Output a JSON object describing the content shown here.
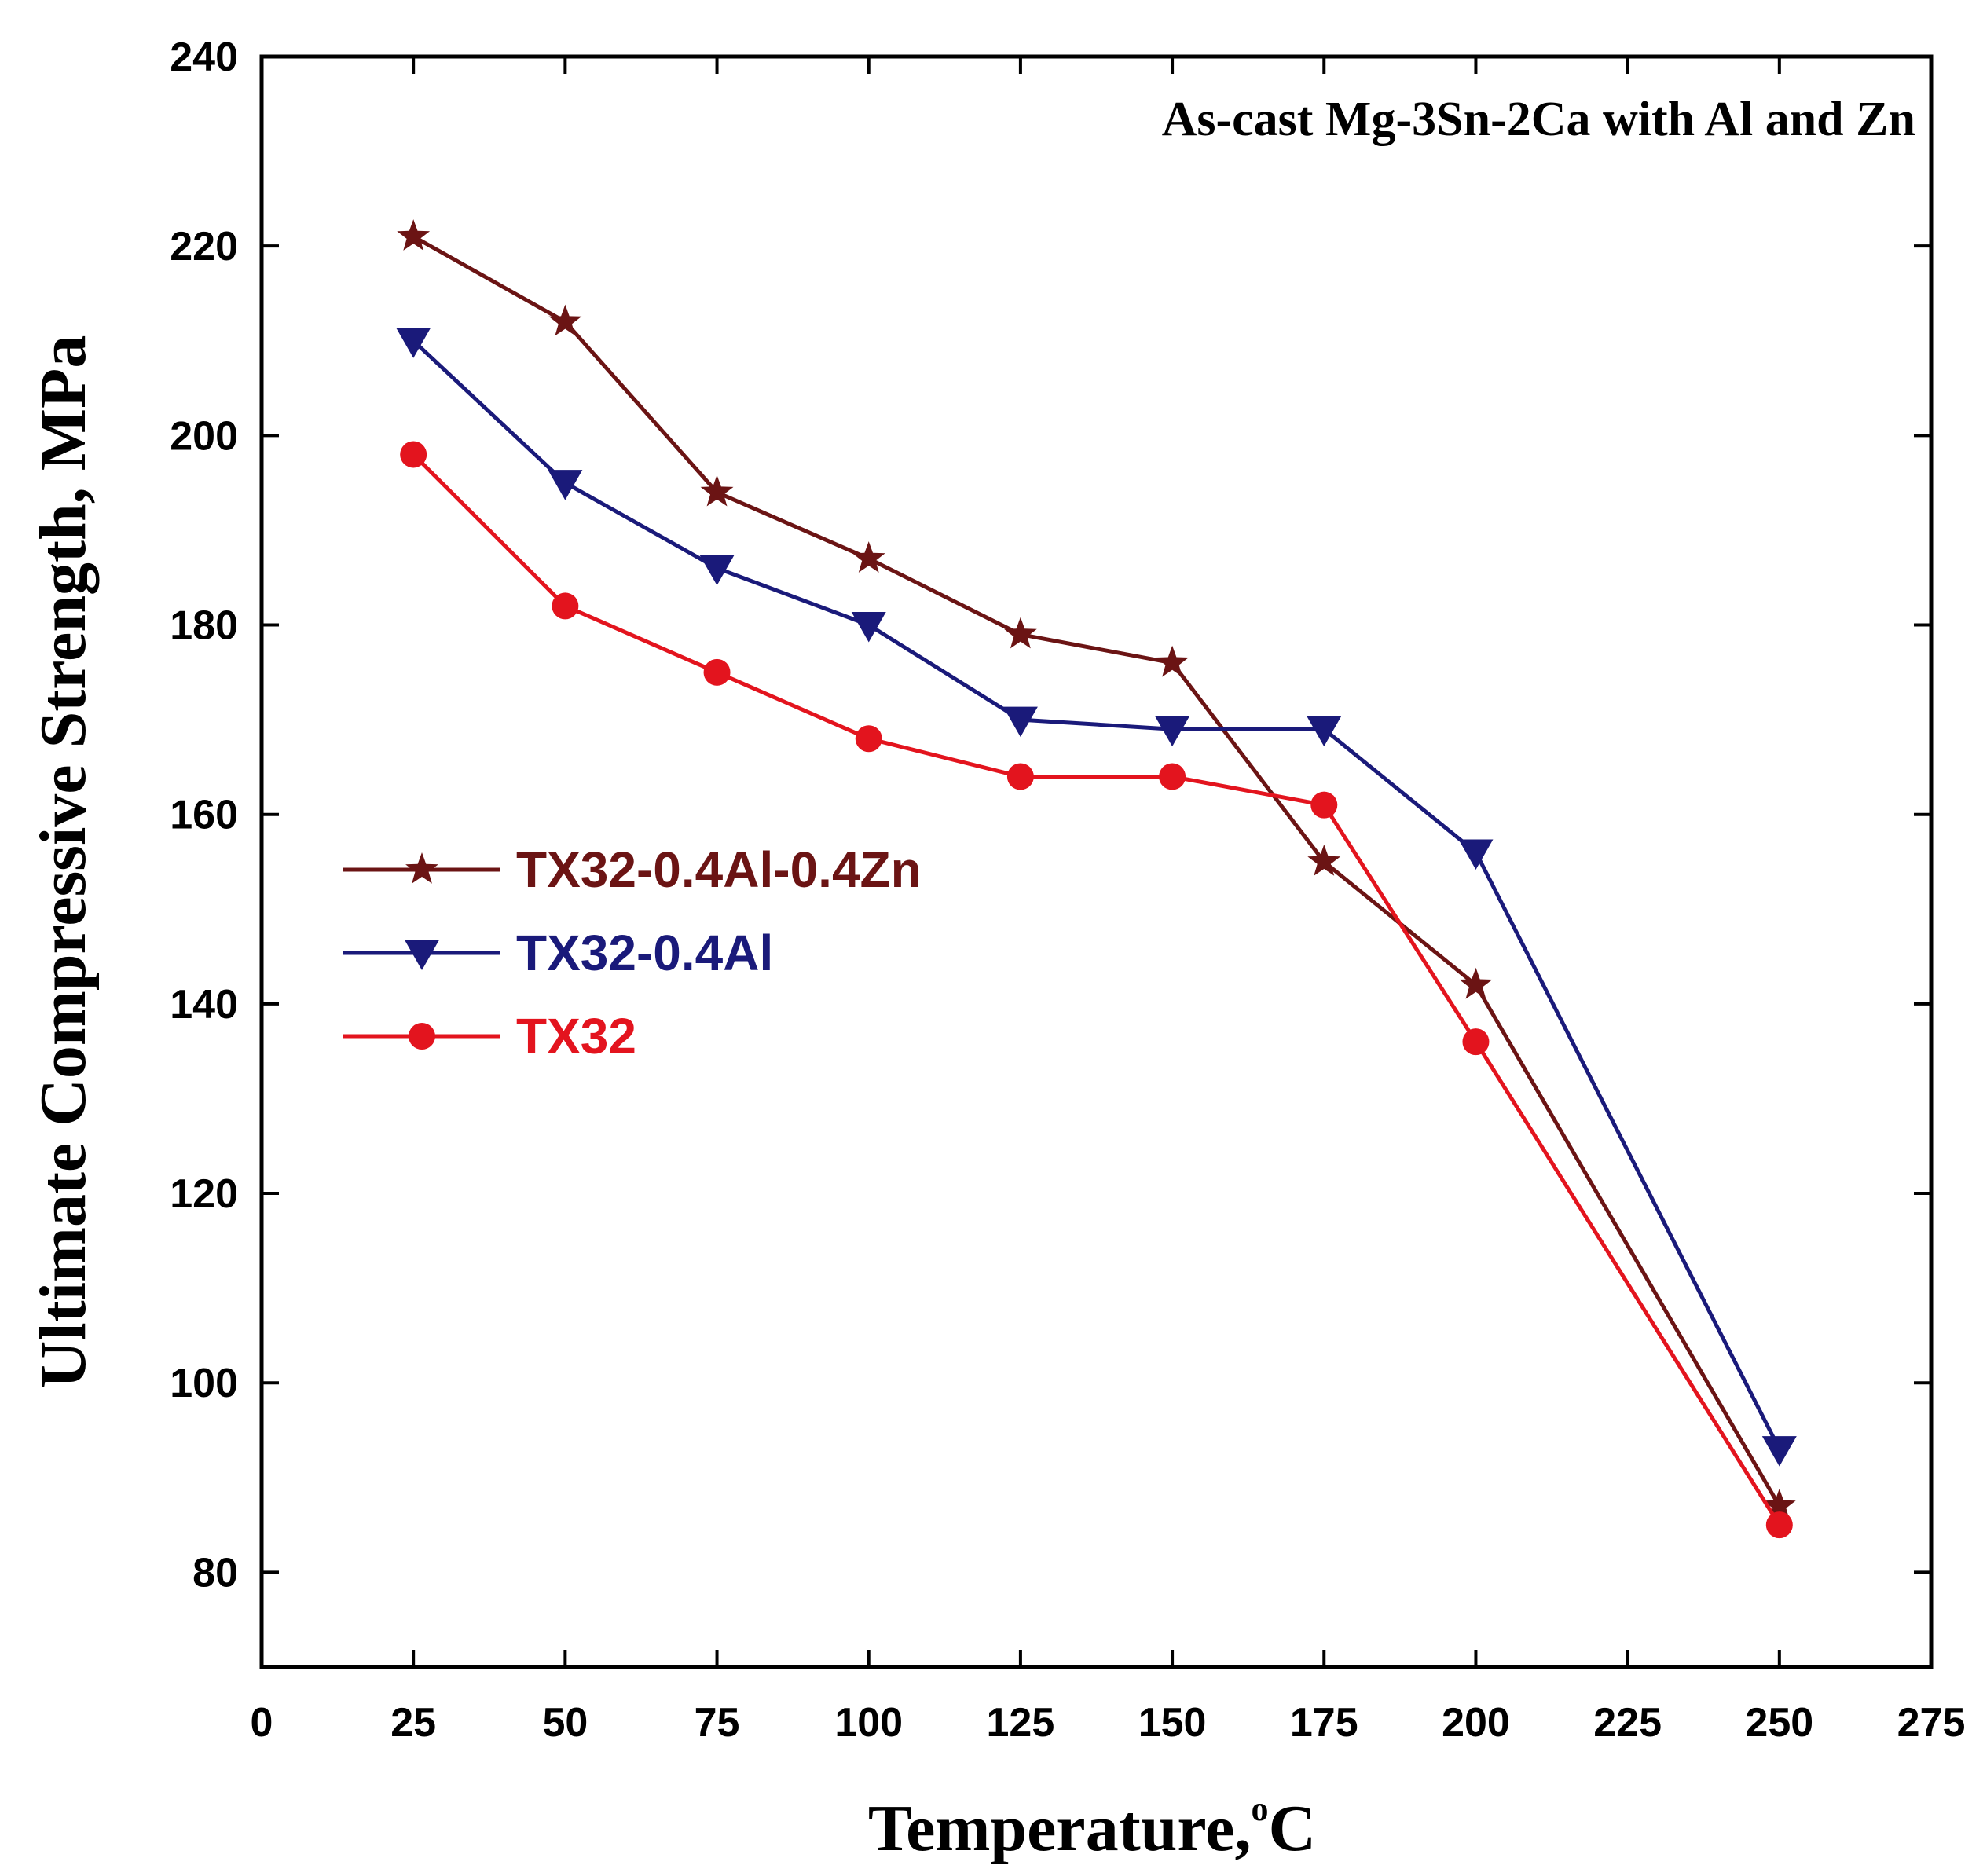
{
  "chart_data": {
    "type": "line",
    "title": "As-cast Mg-3Sn-2Ca with Al and Zn",
    "xlabel": "Temperature,",
    "xlabel_sup": "o",
    "xlabel_unit": "C",
    "ylabel": "Ultimate Compressive Strength, MPa",
    "xlim": [
      0,
      275
    ],
    "ylim": [
      70,
      240
    ],
    "xticks": [
      0,
      25,
      50,
      75,
      100,
      125,
      150,
      175,
      200,
      225,
      250,
      275
    ],
    "yticks": [
      80,
      100,
      120,
      140,
      160,
      180,
      200,
      220,
      240
    ],
    "grid": false,
    "legend_position": "middle-left",
    "series": [
      {
        "name": "TX32-0.4Al-0.4Zn",
        "marker": "star",
        "color": "#6b1414",
        "x": [
          25,
          50,
          75,
          100,
          125,
          150,
          175,
          200,
          250
        ],
        "y": [
          221,
          212,
          194,
          187,
          179,
          176,
          155,
          142,
          87
        ]
      },
      {
        "name": "TX32-0.4Al",
        "marker": "triangle-down",
        "color": "#1a1a7a",
        "x": [
          25,
          50,
          75,
          100,
          125,
          150,
          175,
          200,
          250
        ],
        "y": [
          210,
          195,
          186,
          180,
          170,
          169,
          169,
          156,
          93
        ]
      },
      {
        "name": "TX32",
        "marker": "circle",
        "color": "#e3141e",
        "x": [
          25,
          50,
          75,
          100,
          125,
          150,
          175,
          200,
          250
        ],
        "y": [
          198,
          182,
          175,
          168,
          164,
          164,
          161,
          136,
          85
        ]
      }
    ]
  }
}
